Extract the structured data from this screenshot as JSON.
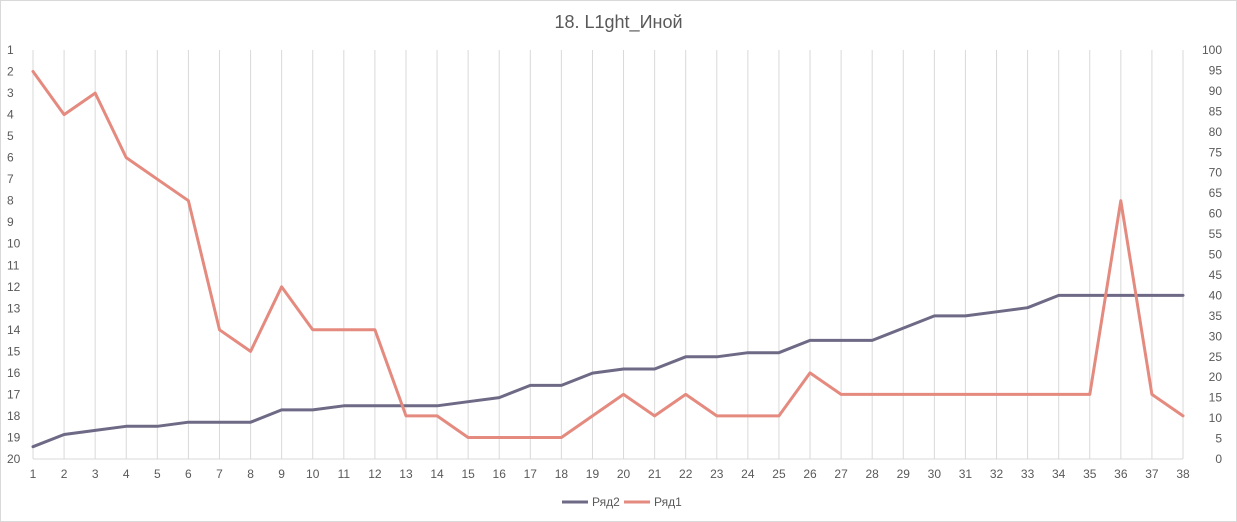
{
  "chart_data": {
    "type": "line",
    "title": "18. L1ght_Иной",
    "xlabel": "",
    "ylabel": "",
    "x": [
      1,
      2,
      3,
      4,
      5,
      6,
      7,
      8,
      9,
      10,
      11,
      12,
      13,
      14,
      15,
      16,
      17,
      18,
      19,
      20,
      21,
      22,
      23,
      24,
      25,
      26,
      27,
      28,
      29,
      30,
      31,
      32,
      33,
      34,
      35,
      36,
      37,
      38
    ],
    "y_left_ticks": [
      "1",
      "2",
      "3",
      "4",
      "5",
      "6",
      "7",
      "8",
      "9",
      "10",
      "11",
      "12",
      "13",
      "14",
      "15",
      "16",
      "17",
      "18",
      "19",
      "20"
    ],
    "y_left_range": [
      1,
      20
    ],
    "y_left_reversed": true,
    "y_right_ticks": [
      "100",
      "95",
      "90",
      "85",
      "80",
      "75",
      "70",
      "65",
      "60",
      "55",
      "50",
      "45",
      "40",
      "35",
      "30",
      "25",
      "20",
      "15",
      "10",
      "5",
      "0"
    ],
    "y_right_range": [
      0,
      100
    ],
    "grid": "vertical",
    "legend_position": "bottom",
    "series": [
      {
        "name": "Ряд2",
        "color": "#6e6a86",
        "axis": "right",
        "values": [
          3,
          6,
          7,
          8,
          8,
          9,
          9,
          9,
          12,
          12,
          13,
          13,
          13,
          13,
          14,
          15,
          18,
          18,
          21,
          22,
          22,
          25,
          25,
          26,
          26,
          29,
          29,
          29,
          32,
          35,
          35,
          36,
          37,
          40,
          40,
          40,
          40,
          40
        ]
      },
      {
        "name": "Ряд1",
        "color": "#e58a7f",
        "axis": "left",
        "values": [
          2,
          4,
          3,
          6,
          7,
          8,
          14,
          15,
          12,
          14,
          14,
          14,
          18,
          18,
          19,
          19,
          19,
          19,
          18,
          17,
          18,
          17,
          18,
          18,
          18,
          16,
          17,
          17,
          17,
          17,
          17,
          17,
          17,
          17,
          17,
          8,
          17,
          18
        ]
      }
    ]
  }
}
